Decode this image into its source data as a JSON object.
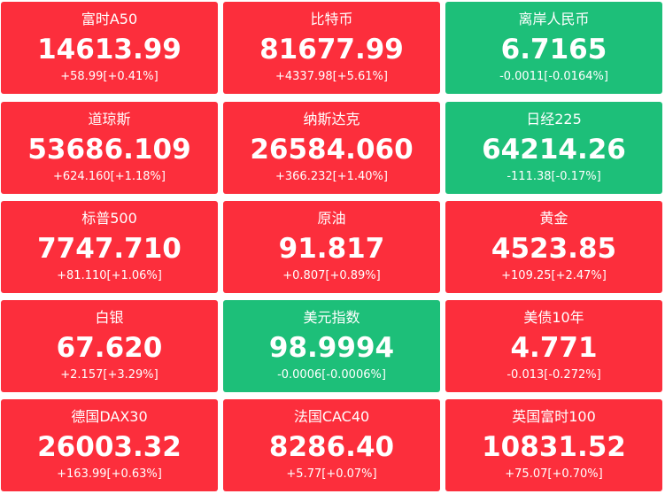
{
  "tiles": [
    {
      "name": "富时A50",
      "price": "14613.99",
      "change": "+58.99[+0.41%]",
      "color": "#fc2e3c"
    },
    {
      "name": "比特币",
      "price": "81677.99",
      "change": "+4337.98[+5.61%]",
      "color": "#fc2e3c"
    },
    {
      "name": "离岸人民币",
      "price": "6.7165",
      "change": "-0.0011[-0.0164%]",
      "color": "#1dbf79"
    },
    {
      "name": "道琼斯",
      "price": "53686.109",
      "change": "+624.160[+1.18%]",
      "color": "#fc2e3c"
    },
    {
      "name": "纳斯达克",
      "price": "26584.060",
      "change": "+366.232[+1.40%]",
      "color": "#fc2e3c"
    },
    {
      "name": "日经225",
      "price": "64214.26",
      "change": "-111.38[-0.17%]",
      "color": "#1dbf79"
    },
    {
      "name": "标普500",
      "price": "7747.710",
      "change": "+81.110[+1.06%]",
      "color": "#fc2e3c"
    },
    {
      "name": "原油",
      "price": "91.817",
      "change": "+0.807[+0.89%]",
      "color": "#fc2e3c"
    },
    {
      "name": "黄金",
      "price": "4523.85",
      "change": "+109.25[+2.47%]",
      "color": "#fc2e3c"
    },
    {
      "name": "白银",
      "price": "67.620",
      "change": "+2.157[+3.29%]",
      "color": "#fc2e3c"
    },
    {
      "name": "美元指数",
      "price": "98.9994",
      "change": "-0.0006[-0.0006%]",
      "color": "#1dbf79"
    },
    {
      "name": "美债10年",
      "price": "4.771",
      "change": "-0.013[-0.272%]",
      "color": "#fc2e3c"
    },
    {
      "name": "德国DAX30",
      "price": "26003.32",
      "change": "+163.99[+0.63%]",
      "color": "#fc2e3c"
    },
    {
      "name": "法国CAC40",
      "price": "8286.40",
      "change": "+5.77[+0.07%]",
      "color": "#fc2e3c"
    },
    {
      "name": "英国富时100",
      "price": "10831.52",
      "change": "+75.07[+0.70%]",
      "color": "#fc2e3c"
    }
  ]
}
